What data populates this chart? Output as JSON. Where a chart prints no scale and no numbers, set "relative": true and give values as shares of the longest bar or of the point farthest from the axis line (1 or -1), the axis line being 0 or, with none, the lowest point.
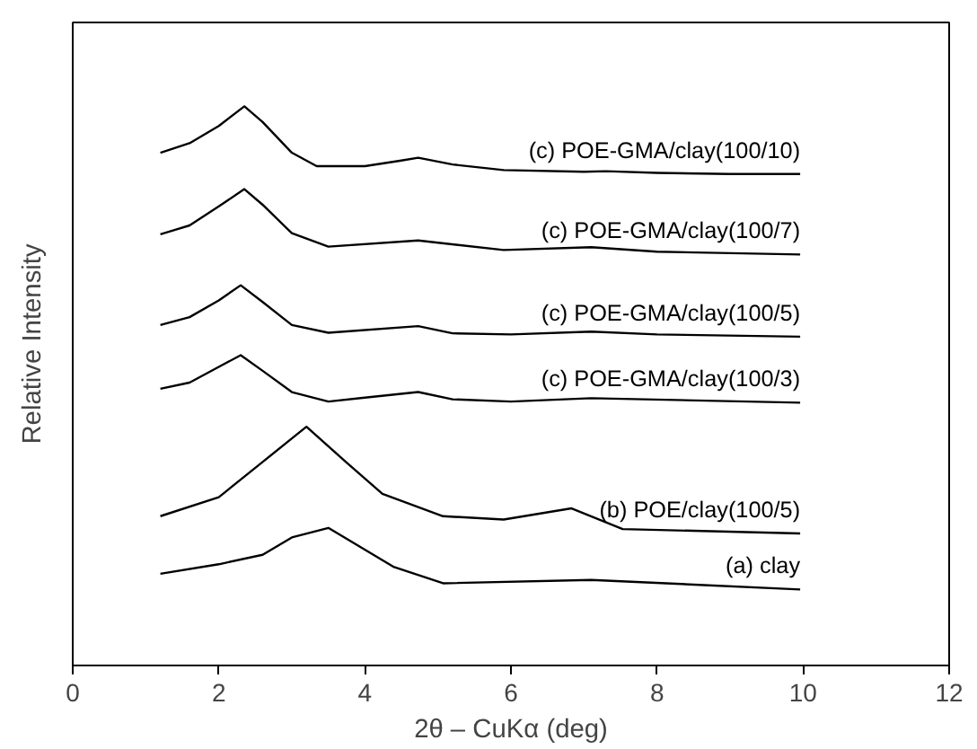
{
  "chart_data": {
    "type": "line",
    "relative": true,
    "xlabel": "2θ – CuKα (deg)",
    "ylabel": "Relative Intensity",
    "xlim": [
      0,
      12
    ],
    "xticks": [
      0,
      2,
      4,
      6,
      8,
      10,
      12
    ],
    "grid": false,
    "marker": "none",
    "line_style": "solid",
    "series": [
      {
        "name": "(c) POE-GMA/clay(100/10)",
        "color": "#000000",
        "x": [
          1.2,
          1.6,
          2.0,
          2.35,
          2.6,
          3.0,
          3.34,
          4.0,
          4.5,
          4.73,
          5.2,
          5.9,
          7.0,
          7.3,
          8.0,
          9.0,
          9.96
        ],
        "values": [
          0.917,
          0.934,
          0.965,
          1.0,
          0.972,
          0.917,
          0.893,
          0.893,
          0.903,
          0.908,
          0.896,
          0.886,
          0.883,
          0.884,
          0.881,
          0.879,
          0.879
        ]
      },
      {
        "name": "(c) POE-GMA/clay(100/7)",
        "color": "#000000",
        "x": [
          1.2,
          1.6,
          2.0,
          2.35,
          2.6,
          3.0,
          3.5,
          4.73,
          5.9,
          7.1,
          8.0,
          9.96
        ],
        "values": [
          0.771,
          0.787,
          0.821,
          0.852,
          0.824,
          0.773,
          0.749,
          0.76,
          0.743,
          0.748,
          0.74,
          0.735
        ]
      },
      {
        "name": "(c) POE-GMA/clay(100/5)",
        "color": "#000000",
        "x": [
          1.2,
          1.6,
          2.0,
          2.3,
          2.6,
          3.0,
          3.5,
          4.73,
          5.2,
          6.0,
          7.1,
          8.0,
          9.96
        ],
        "values": [
          0.609,
          0.623,
          0.653,
          0.68,
          0.65,
          0.609,
          0.595,
          0.607,
          0.594,
          0.592,
          0.597,
          0.592,
          0.588
        ]
      },
      {
        "name": "(c) POE-GMA/clay(100/3)",
        "color": "#000000",
        "x": [
          1.2,
          1.6,
          2.0,
          2.3,
          2.6,
          3.0,
          3.5,
          4.0,
          4.73,
          5.2,
          6.0,
          7.1,
          9.96
        ],
        "values": [
          0.495,
          0.506,
          0.534,
          0.555,
          0.527,
          0.489,
          0.472,
          0.479,
          0.489,
          0.476,
          0.472,
          0.478,
          0.47
        ]
      },
      {
        "name": "(b) POE/clay(100/5)",
        "color": "#000000",
        "x": [
          1.2,
          2.0,
          2.6,
          3.2,
          3.74,
          4.24,
          5.07,
          5.9,
          6.83,
          7.53,
          9.96
        ],
        "values": [
          0.267,
          0.301,
          0.364,
          0.427,
          0.364,
          0.307,
          0.267,
          0.261,
          0.281,
          0.244,
          0.236
        ]
      },
      {
        "name": "(a) clay",
        "color": "#000000",
        "x": [
          1.2,
          2.0,
          2.6,
          3.0,
          3.5,
          4.4,
          5.07,
          7.1,
          9.96
        ],
        "values": [
          0.164,
          0.181,
          0.198,
          0.229,
          0.246,
          0.176,
          0.147,
          0.153,
          0.136
        ]
      }
    ]
  }
}
